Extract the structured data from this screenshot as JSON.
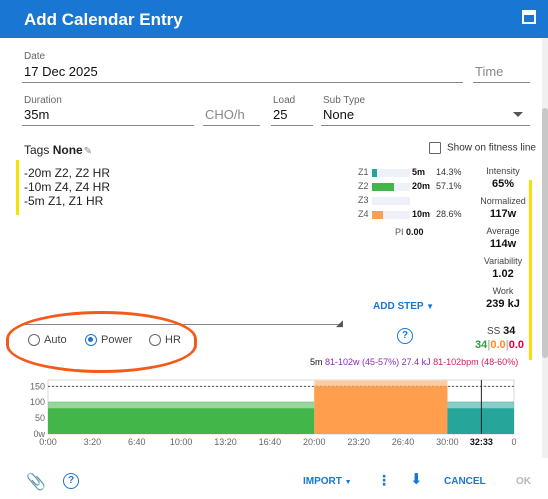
{
  "dialog": {
    "title": "Add Calendar Entry"
  },
  "fields": {
    "date": {
      "label": "Date",
      "value": "17 Dec 2025"
    },
    "time": {
      "placeholder": "Time"
    },
    "duration": {
      "label": "Duration",
      "value": "35m"
    },
    "cho": {
      "placeholder": "CHO/h"
    },
    "load": {
      "label": "Load",
      "value": "25"
    },
    "sub_type": {
      "label": "Sub Type",
      "value": "None"
    }
  },
  "tags": {
    "label": "Tags",
    "value": "None"
  },
  "fitness_line": {
    "label": "Show on fitness line",
    "checked": false
  },
  "workout_text": "-20m Z2, Z2 HR\n-10m Z4, Z4 HR\n-5m Z1, Z1 HR",
  "zones": [
    {
      "label": "Z1",
      "time": "5m",
      "pct": "14.3%",
      "fraction": 0.143,
      "color": "#26a69a"
    },
    {
      "label": "Z2",
      "time": "20m",
      "pct": "57.1%",
      "fraction": 0.571,
      "color": "#43b649"
    },
    {
      "label": "Z3",
      "time": "",
      "pct": "",
      "fraction": 0,
      "color": "#f9d73b"
    },
    {
      "label": "Z4",
      "time": "10m",
      "pct": "28.6%",
      "fraction": 0.286,
      "color": "#ff9f4d"
    }
  ],
  "pi": {
    "label": "PI",
    "value": "0.00"
  },
  "stats": [
    {
      "label": "Intensity",
      "value": "65%"
    },
    {
      "label": "Normalized",
      "value": "117w"
    },
    {
      "label": "Average",
      "value": "114w"
    },
    {
      "label": "Variability",
      "value": "1.02"
    },
    {
      "label": "Work",
      "value": "239 kJ"
    }
  ],
  "ss": {
    "label": "SS",
    "value": "34",
    "parts": [
      "34",
      "0.0",
      "0.0"
    ],
    "colors": [
      "#2e9e3a",
      "#ff8c1a",
      "#d8003a"
    ]
  },
  "add_step": {
    "label": "ADD STEP"
  },
  "target_mode": {
    "options": [
      "Auto",
      "Power",
      "HR"
    ],
    "selected": "Power"
  },
  "step_summary": {
    "duration": "5m",
    "power": "81-102w (45-57%)",
    "work": "27.4 kJ",
    "hr": "81-102bpm (48-60%)",
    "colors": {
      "power": "#8b2bb5",
      "hr": "#d81b60"
    }
  },
  "chart_data": {
    "type": "area",
    "y_ticks": [
      "150",
      "100",
      "50",
      "0w"
    ],
    "x_ticks": [
      "0:00",
      "3:20",
      "6:40",
      "10:00",
      "13:20",
      "16:40",
      "20:00",
      "23:20",
      "26:40",
      "30:00",
      "32:33",
      "0"
    ],
    "x_unit": "minutes",
    "y_unit": "w",
    "ylim": [
      0,
      170
    ],
    "xlim": [
      0,
      35
    ],
    "reference_line": 150,
    "cursor": "32:33",
    "series": [
      {
        "start": 0,
        "end": 20,
        "low": 81,
        "high": 102,
        "color": "#43b649"
      },
      {
        "start": 20,
        "end": 30,
        "low": 150,
        "high": 168,
        "color": "#ff9f4d"
      },
      {
        "start": 30,
        "end": 35,
        "low": 81,
        "high": 102,
        "color": "#26a69a"
      }
    ]
  },
  "bottom_bar": {
    "import": "IMPORT",
    "cancel": "CANCEL",
    "ok": "OK"
  }
}
